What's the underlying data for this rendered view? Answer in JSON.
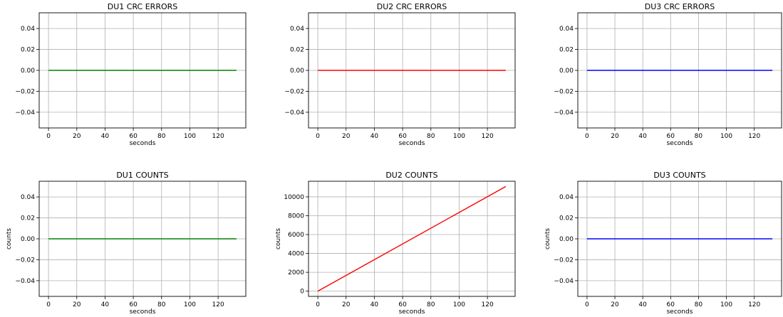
{
  "chart_data": [
    {
      "type": "line",
      "title": "DU1 CRC ERRORS",
      "xlabel": "seconds",
      "ylabel": "",
      "xlim": [
        -6.6,
        139.6
      ],
      "ylim": [
        -0.055,
        0.055
      ],
      "xticks": [
        0,
        20,
        40,
        60,
        80,
        100,
        120
      ],
      "yticks": [
        0.04,
        0.02,
        0.0,
        -0.02,
        -0.04
      ],
      "ytick_labels": [
        "0.04",
        "0.02",
        "0.00",
        "−0.02",
        "−0.04"
      ],
      "grid": true,
      "series": [
        {
          "color": "#008000",
          "x": [
            0,
            133
          ],
          "y": [
            0,
            0
          ]
        }
      ]
    },
    {
      "type": "line",
      "title": "DU2 CRC ERRORS",
      "xlabel": "seconds",
      "ylabel": "",
      "xlim": [
        -6.6,
        139.6
      ],
      "ylim": [
        -0.055,
        0.055
      ],
      "xticks": [
        0,
        20,
        40,
        60,
        80,
        100,
        120
      ],
      "yticks": [
        0.04,
        0.02,
        0.0,
        -0.02,
        -0.04
      ],
      "ytick_labels": [
        "0.04",
        "0.02",
        "0.00",
        "−0.02",
        "−0.04"
      ],
      "grid": true,
      "series": [
        {
          "color": "#ff0000",
          "x": [
            0,
            133
          ],
          "y": [
            0,
            0
          ]
        }
      ]
    },
    {
      "type": "line",
      "title": "DU3 CRC ERRORS",
      "xlabel": "seconds",
      "ylabel": "",
      "xlim": [
        -6.6,
        139.6
      ],
      "ylim": [
        -0.055,
        0.055
      ],
      "xticks": [
        0,
        20,
        40,
        60,
        80,
        100,
        120
      ],
      "yticks": [
        0.04,
        0.02,
        0.0,
        -0.02,
        -0.04
      ],
      "ytick_labels": [
        "0.04",
        "0.02",
        "0.00",
        "−0.02",
        "−0.04"
      ],
      "grid": true,
      "series": [
        {
          "color": "#0000ff",
          "x": [
            0,
            133
          ],
          "y": [
            0,
            0
          ]
        }
      ]
    },
    {
      "type": "line",
      "title": "DU1 COUNTS",
      "xlabel": "seconds",
      "ylabel": "counts",
      "xlim": [
        -6.6,
        139.6
      ],
      "ylim": [
        -0.055,
        0.055
      ],
      "xticks": [
        0,
        20,
        40,
        60,
        80,
        100,
        120
      ],
      "yticks": [
        0.04,
        0.02,
        0.0,
        -0.02,
        -0.04
      ],
      "ytick_labels": [
        "0.04",
        "0.02",
        "0.00",
        "−0.02",
        "−0.04"
      ],
      "grid": true,
      "series": [
        {
          "color": "#008000",
          "x": [
            0,
            133
          ],
          "y": [
            0,
            0
          ]
        }
      ]
    },
    {
      "type": "line",
      "title": "DU2 COUNTS",
      "xlabel": "seconds",
      "ylabel": "counts",
      "xlim": [
        -6.6,
        139.6
      ],
      "ylim": [
        -555,
        11655
      ],
      "xticks": [
        0,
        20,
        40,
        60,
        80,
        100,
        120
      ],
      "yticks": [
        10000,
        8000,
        6000,
        4000,
        2000,
        0
      ],
      "ytick_labels": [
        "10000",
        "8000",
        "6000",
        "4000",
        "2000",
        "0"
      ],
      "grid": true,
      "series": [
        {
          "color": "#ff0000",
          "x": [
            0,
            133
          ],
          "y": [
            0,
            11100
          ]
        }
      ]
    },
    {
      "type": "line",
      "title": "DU3 COUNTS",
      "xlabel": "seconds",
      "ylabel": "counts",
      "xlim": [
        -6.6,
        139.6
      ],
      "ylim": [
        -0.055,
        0.055
      ],
      "xticks": [
        0,
        20,
        40,
        60,
        80,
        100,
        120
      ],
      "yticks": [
        0.04,
        0.02,
        0.0,
        -0.02,
        -0.04
      ],
      "ytick_labels": [
        "0.04",
        "0.02",
        "0.00",
        "−0.02",
        "−0.04"
      ],
      "grid": true,
      "series": [
        {
          "color": "#0000ff",
          "x": [
            0,
            133
          ],
          "y": [
            0,
            0
          ]
        }
      ]
    }
  ]
}
